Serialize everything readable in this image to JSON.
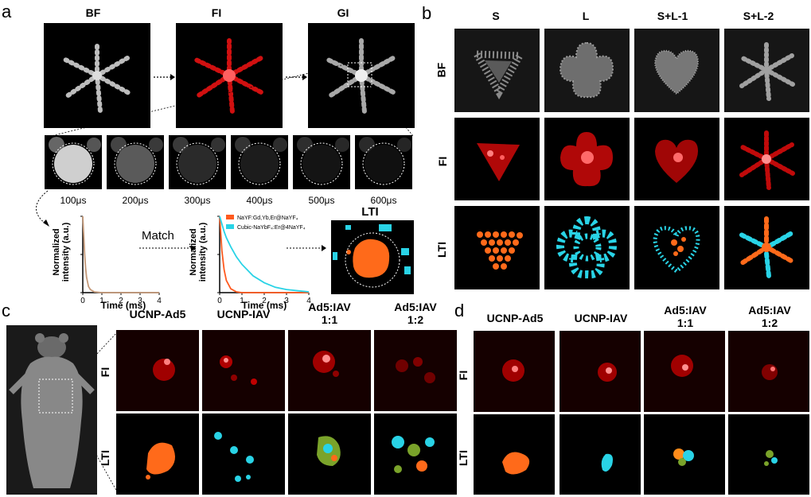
{
  "panel_a": {
    "label": "a",
    "headers": [
      "BF",
      "FI",
      "GI"
    ],
    "time_labels": [
      "100μs",
      "200μs",
      "300μs",
      "400μs",
      "500μs",
      "600μs"
    ],
    "plot_ylabel_line1": "Normalized",
    "plot_ylabel_line2": "intensity (a.u.)",
    "plot_xlabel": "Time (ms)",
    "match_label": "Match",
    "legend": [
      "NaYF:Gd,Yb,Er@NaYF₄",
      "Cubic-NaYbF₄:Er@4NaYF₄"
    ],
    "lti_label": "LTI",
    "colors": {
      "series1": "#ff5a1f",
      "series2": "#29d3e6",
      "single": "#c59a7a"
    }
  },
  "chart_data": [
    {
      "type": "line",
      "x": [
        0,
        0.05,
        0.1,
        0.15,
        0.2,
        0.3,
        0.4,
        0.6,
        1,
        2,
        3,
        4
      ],
      "series": [
        {
          "values": [
            1,
            0.75,
            0.5,
            0.32,
            0.2,
            0.08,
            0.04,
            0.01,
            0,
            0,
            0,
            0
          ]
        }
      ],
      "xlabel": "Time (ms)",
      "ylabel": "Normalized intensity (a.u.)",
      "xlim": [
        0,
        4
      ],
      "ylim": [
        0,
        1
      ],
      "xticks": [
        0,
        1,
        2,
        3,
        4
      ],
      "yticks": [
        0,
        0.5,
        1
      ]
    },
    {
      "type": "line",
      "x": [
        0,
        0.1,
        0.2,
        0.3,
        0.5,
        0.75,
        1,
        1.5,
        2,
        2.5,
        3,
        4
      ],
      "series": [
        {
          "name": "NaYF:Gd,Yb,Er@NaYF₄",
          "values": [
            1,
            0.55,
            0.3,
            0.16,
            0.05,
            0.01,
            0,
            0,
            0,
            0,
            0,
            0
          ]
        },
        {
          "name": "Cubic-NaYbF₄:Er@4NaYF₄",
          "values": [
            1,
            0.9,
            0.8,
            0.72,
            0.6,
            0.47,
            0.37,
            0.22,
            0.13,
            0.07,
            0.04,
            0.01
          ]
        }
      ],
      "xlabel": "Time (ms)",
      "ylabel": "Normalized intensity (a.u.)",
      "xlim": [
        0,
        4
      ],
      "ylim": [
        0,
        1
      ],
      "xticks": [
        0,
        1,
        2,
        3,
        4
      ],
      "yticks": [
        0,
        0.5,
        1
      ]
    }
  ],
  "panel_b": {
    "label": "b",
    "columns": [
      "S",
      "L",
      "S+L-1",
      "S+L-2"
    ],
    "rows": [
      "BF",
      "FI",
      "LTI"
    ]
  },
  "panel_c": {
    "label": "c",
    "columns": [
      "UCNP-Ad5",
      "UCNP-IAV",
      "Ad5:IAV\n1:1",
      "Ad5:IAV\n1:2"
    ],
    "col_line1": [
      "UCNP-Ad5",
      "UCNP-IAV",
      "Ad5:IAV",
      "Ad5:IAV"
    ],
    "col_line2": [
      "",
      "",
      "1:1",
      "1:2"
    ],
    "rows": [
      "FI",
      "LTI"
    ]
  },
  "panel_d": {
    "label": "d",
    "col_line1": [
      "UCNP-Ad5",
      "UCNP-IAV",
      "Ad5:IAV",
      "Ad5:IAV"
    ],
    "col_line2": [
      "",
      "",
      "1:1",
      "1:2"
    ],
    "rows": [
      "FI",
      "LTI"
    ]
  }
}
